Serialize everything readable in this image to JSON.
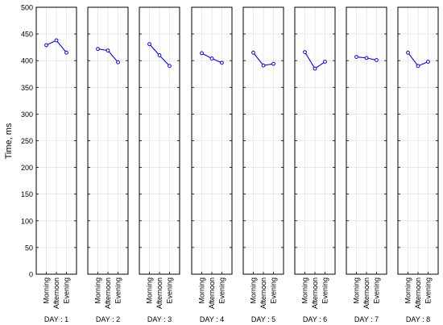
{
  "chart_data": {
    "type": "line",
    "ylabel": "Time, ms",
    "ylim": [
      0,
      500
    ],
    "yticks": [
      0,
      50,
      100,
      150,
      200,
      250,
      300,
      350,
      400,
      450,
      500
    ],
    "categories": [
      "Morning",
      "Afternoon",
      "Evening"
    ],
    "grid": true,
    "line_color": "#0000ff",
    "panels": [
      {
        "label": "DAY : 1",
        "values": [
          429,
          438,
          415
        ]
      },
      {
        "label": "DAY : 2",
        "values": [
          422,
          419,
          397
        ]
      },
      {
        "label": "DAY : 3",
        "values": [
          431,
          410,
          390
        ]
      },
      {
        "label": "DAY : 4",
        "values": [
          414,
          404,
          396
        ]
      },
      {
        "label": "DAY : 5",
        "values": [
          415,
          391,
          394
        ]
      },
      {
        "label": "DAY : 6",
        "values": [
          416,
          385,
          398
        ]
      },
      {
        "label": "DAY : 7",
        "values": [
          407,
          405,
          401
        ]
      },
      {
        "label": "DAY : 8",
        "values": [
          415,
          390,
          398
        ]
      }
    ]
  }
}
